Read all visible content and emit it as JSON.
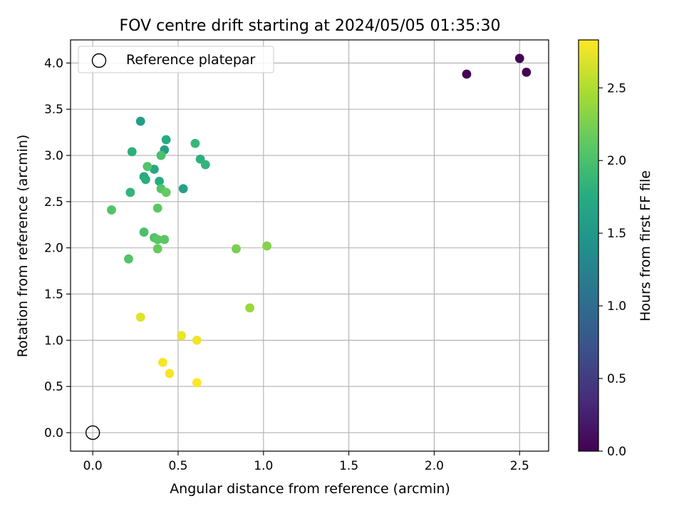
{
  "chart_data": {
    "type": "scatter",
    "title": "FOV centre drift starting at 2024/05/05 01:35:30",
    "xlabel": "Angular distance from reference (arcmin)",
    "ylabel": "Rotation from reference (arcmin)",
    "xlim": [
      -0.13,
      2.67
    ],
    "ylim": [
      -0.2,
      4.25
    ],
    "grid": true,
    "x_ticks": [
      0.0,
      0.5,
      1.0,
      1.5,
      2.0,
      2.5
    ],
    "x_tick_labels": [
      "0.0",
      "0.5",
      "1.0",
      "1.5",
      "2.0",
      "2.5"
    ],
    "y_ticks": [
      0.0,
      0.5,
      1.0,
      1.5,
      2.0,
      2.5,
      3.0,
      3.5,
      4.0
    ],
    "y_tick_labels": [
      "0.0",
      "0.5",
      "1.0",
      "1.5",
      "2.0",
      "2.5",
      "3.0",
      "3.5",
      "4.0"
    ],
    "legend": {
      "placement": "upper-left",
      "entries": [
        {
          "label": "Reference platepar",
          "marker": "open-circle"
        }
      ]
    },
    "reference_point": {
      "x": 0.0,
      "y": 0.0
    },
    "colorbar": {
      "label": "Hours from first FF file",
      "colormap": "viridis",
      "range": [
        0.0,
        2.83
      ],
      "ticks": [
        0.0,
        0.5,
        1.0,
        1.5,
        2.0,
        2.5
      ],
      "tick_labels": [
        "0.0",
        "0.5",
        "1.0",
        "1.5",
        "2.0",
        "2.5"
      ]
    },
    "points": [
      {
        "x": 2.19,
        "y": 3.88,
        "hours": 0.0
      },
      {
        "x": 2.5,
        "y": 4.05,
        "hours": 0.0
      },
      {
        "x": 2.54,
        "y": 3.9,
        "hours": 0.0
      },
      {
        "x": 0.28,
        "y": 3.37,
        "hours": 1.55
      },
      {
        "x": 0.42,
        "y": 3.06,
        "hours": 1.6
      },
      {
        "x": 0.53,
        "y": 2.64,
        "hours": 1.62
      },
      {
        "x": 0.43,
        "y": 3.17,
        "hours": 1.75
      },
      {
        "x": 0.23,
        "y": 3.04,
        "hours": 1.8
      },
      {
        "x": 0.36,
        "y": 2.85,
        "hours": 1.7
      },
      {
        "x": 0.3,
        "y": 2.77,
        "hours": 1.72
      },
      {
        "x": 0.31,
        "y": 2.74,
        "hours": 1.78
      },
      {
        "x": 0.39,
        "y": 2.72,
        "hours": 1.74
      },
      {
        "x": 0.22,
        "y": 2.6,
        "hours": 1.85
      },
      {
        "x": 0.6,
        "y": 3.13,
        "hours": 1.88
      },
      {
        "x": 0.63,
        "y": 2.96,
        "hours": 1.82
      },
      {
        "x": 0.66,
        "y": 2.9,
        "hours": 1.85
      },
      {
        "x": 0.4,
        "y": 3.0,
        "hours": 2.0
      },
      {
        "x": 0.32,
        "y": 2.88,
        "hours": 2.05
      },
      {
        "x": 0.4,
        "y": 2.64,
        "hours": 2.05
      },
      {
        "x": 0.43,
        "y": 2.6,
        "hours": 2.15
      },
      {
        "x": 0.38,
        "y": 2.43,
        "hours": 2.1
      },
      {
        "x": 0.11,
        "y": 2.41,
        "hours": 2.05
      },
      {
        "x": 0.3,
        "y": 2.17,
        "hours": 2.0
      },
      {
        "x": 0.36,
        "y": 2.11,
        "hours": 2.05
      },
      {
        "x": 0.38,
        "y": 2.09,
        "hours": 2.1
      },
      {
        "x": 0.42,
        "y": 2.09,
        "hours": 2.1
      },
      {
        "x": 0.38,
        "y": 1.99,
        "hours": 2.15
      },
      {
        "x": 0.21,
        "y": 1.88,
        "hours": 2.05
      },
      {
        "x": 0.84,
        "y": 1.99,
        "hours": 2.25
      },
      {
        "x": 1.02,
        "y": 2.02,
        "hours": 2.3
      },
      {
        "x": 0.92,
        "y": 1.35,
        "hours": 2.4
      },
      {
        "x": 0.28,
        "y": 1.25,
        "hours": 2.7
      },
      {
        "x": 0.52,
        "y": 1.05,
        "hours": 2.75
      },
      {
        "x": 0.61,
        "y": 1.0,
        "hours": 2.78
      },
      {
        "x": 0.41,
        "y": 0.76,
        "hours": 2.8
      },
      {
        "x": 0.45,
        "y": 0.64,
        "hours": 2.8
      },
      {
        "x": 0.61,
        "y": 0.54,
        "hours": 2.82
      }
    ]
  }
}
